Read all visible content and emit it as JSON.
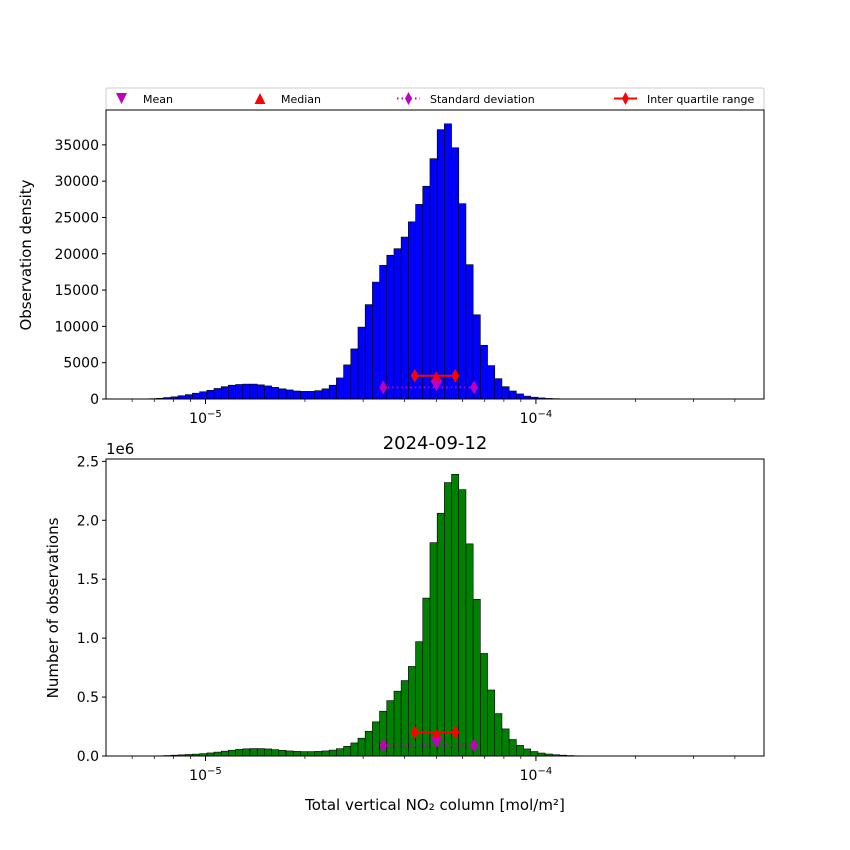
{
  "legend": {
    "placement": "top, above upper panel, single row",
    "entries": [
      {
        "label": "Mean",
        "color": "#bf00bf",
        "marker": "triangle-down"
      },
      {
        "label": "Median",
        "color": "#ff0000",
        "marker": "triangle-up"
      },
      {
        "label": "Standard deviation",
        "color": "#bf00bf",
        "marker": "thin-diamond",
        "linestyle": "dotted"
      },
      {
        "label": "Inter quartile range",
        "color": "#ff0000",
        "marker": "thin-diamond",
        "linestyle": "solid"
      }
    ]
  },
  "chart_data": [
    {
      "type": "bar",
      "xscale": "log",
      "xlim": [
        5e-06,
        0.00049
      ],
      "ylim": [
        0,
        39800
      ],
      "xticks": [
        {
          "value": 1e-05,
          "label": "10−5"
        },
        {
          "value": 0.0001,
          "label": "10−4"
        }
      ],
      "yticks": [
        0,
        5000,
        10000,
        15000,
        20000,
        25000,
        30000,
        35000
      ],
      "ylabel": "Observation density",
      "xlabel": "",
      "title": "",
      "bar_color": "#0000ff",
      "bin_edges": [
        5e-06,
        5.26e-06,
        5.53e-06,
        5.81e-06,
        6.11e-06,
        6.43e-06,
        6.76e-06,
        7.11e-06,
        7.47e-06,
        7.86e-06,
        8.26e-06,
        8.69e-06,
        9.13e-06,
        9.6e-06,
        1.01e-05,
        1.061e-05,
        1.116e-05,
        1.173e-05,
        1.234e-05,
        1.297e-05,
        1.364e-05,
        1.434e-05,
        1.508e-05,
        1.585e-05,
        1.667e-05,
        1.753e-05,
        1.843e-05,
        1.938e-05,
        2.037e-05,
        2.142e-05,
        2.252e-05,
        2.368e-05,
        2.49e-05,
        2.618e-05,
        2.753e-05,
        2.894e-05,
        3.043e-05,
        3.2e-05,
        3.364e-05,
        3.537e-05,
        3.719e-05,
        3.91e-05,
        4.111e-05,
        4.323e-05,
        4.545e-05,
        4.779e-05,
        5.025e-05,
        5.283e-05,
        5.555e-05,
        5.84e-05,
        6.141e-05,
        6.457e-05,
        6.789e-05,
        7.138e-05,
        7.505e-05,
        7.891e-05,
        8.297e-05,
        8.724e-05,
        9.173e-05,
        9.645e-05,
        0.00010141,
        0.00010663,
        0.00011211,
        0.00011788,
        0.00012394,
        0.00013032,
        0.00013702,
        0.00014407,
        0.00015148,
        0.00015927,
        0.00016746,
        0.00017608,
        0.00018514,
        0.00019466,
        0.00020467,
        0.0002152,
        0.00022627,
        0.00023791,
        0.00025015,
        0.00026302,
        0.00027655,
        0.00029077,
        0.00030573,
        0.00032146,
        0.00033799,
        0.00035538,
        0.00037366,
        0.00039288,
        0.00041309,
        0.00043434,
        0.00045669,
        0.00048018
      ],
      "values": [
        0,
        0,
        0,
        0,
        0,
        20,
        50,
        100,
        200,
        300,
        450,
        600,
        800,
        1000,
        1200,
        1450,
        1700,
        1900,
        2000,
        2050,
        2050,
        1950,
        1800,
        1600,
        1400,
        1250,
        1100,
        1050,
        1050,
        1150,
        1400,
        1900,
        2900,
        4700,
        6900,
        9900,
        13000,
        16100,
        18400,
        19800,
        20700,
        22300,
        24400,
        26800,
        29300,
        33100,
        37100,
        37900,
        34600,
        26900,
        18500,
        11600,
        7400,
        4600,
        2800,
        1700,
        1100,
        700,
        400,
        250,
        150,
        80,
        50,
        25,
        12,
        0,
        0,
        0,
        0,
        0,
        0,
        0,
        0,
        0,
        0,
        0,
        0,
        0,
        0,
        0,
        0,
        0,
        0,
        0,
        0,
        0,
        0,
        0,
        0,
        0,
        0
      ],
      "statistics": {
        "mean": {
          "x": 5e-05,
          "y": 1900
        },
        "median": {
          "x": 5e-05,
          "y": 3000
        },
        "std_dev": {
          "low": 3.45e-05,
          "high": 6.5e-05,
          "y": 1600
        },
        "iqr": {
          "low": 4.3e-05,
          "high": 5.7e-05,
          "y": 3200
        }
      }
    },
    {
      "type": "bar",
      "xscale": "log",
      "xlim": [
        5e-06,
        0.00049
      ],
      "ylim": [
        0,
        2.52
      ],
      "xticks": [
        {
          "value": 1e-05,
          "label": "10−5"
        },
        {
          "value": 0.0001,
          "label": "10−4"
        }
      ],
      "yticks": [
        0.0,
        0.5,
        1.0,
        1.5,
        2.0,
        2.5
      ],
      "ytick_labels": [
        "0.0",
        "0.5",
        "1.0",
        "1.5",
        "2.0",
        "2.5"
      ],
      "y_offset_label": "1e6",
      "ylabel": "Number of observations",
      "xlabel": "Total vertical NO₂ column [mol/m²]",
      "title": "2024-09-12",
      "bar_color": "#008000",
      "bin_edges": [
        5e-06,
        5.26e-06,
        5.53e-06,
        5.81e-06,
        6.11e-06,
        6.43e-06,
        6.76e-06,
        7.11e-06,
        7.47e-06,
        7.86e-06,
        8.26e-06,
        8.69e-06,
        9.13e-06,
        9.6e-06,
        1.01e-05,
        1.061e-05,
        1.116e-05,
        1.173e-05,
        1.234e-05,
        1.297e-05,
        1.364e-05,
        1.434e-05,
        1.508e-05,
        1.585e-05,
        1.667e-05,
        1.753e-05,
        1.843e-05,
        1.938e-05,
        2.037e-05,
        2.142e-05,
        2.252e-05,
        2.368e-05,
        2.49e-05,
        2.618e-05,
        2.753e-05,
        2.894e-05,
        3.043e-05,
        3.2e-05,
        3.364e-05,
        3.537e-05,
        3.719e-05,
        3.91e-05,
        4.111e-05,
        4.323e-05,
        4.545e-05,
        4.779e-05,
        5.025e-05,
        5.283e-05,
        5.555e-05,
        5.84e-05,
        6.141e-05,
        6.457e-05,
        6.789e-05,
        7.138e-05,
        7.505e-05,
        7.891e-05,
        8.297e-05,
        8.724e-05,
        9.173e-05,
        9.645e-05,
        0.00010141,
        0.00010663,
        0.00011211,
        0.00011788,
        0.00012394,
        0.00013032,
        0.00013702,
        0.00014407,
        0.00015148,
        0.00015927,
        0.00016746,
        0.00017608,
        0.00018514,
        0.00019466,
        0.00020467,
        0.0002152,
        0.00022627,
        0.00023791,
        0.00025015,
        0.00026302,
        0.00027655,
        0.00029077,
        0.00030573,
        0.00032146,
        0.00033799,
        0.00035538,
        0.00037366,
        0.00039288,
        0.00041309,
        0.00043434,
        0.00045669,
        0.00048018
      ],
      "values": [
        0,
        0,
        0,
        0,
        0,
        0,
        0,
        0.002,
        0.004,
        0.007,
        0.01,
        0.013,
        0.016,
        0.02,
        0.026,
        0.033,
        0.041,
        0.049,
        0.056,
        0.061,
        0.063,
        0.063,
        0.06,
        0.054,
        0.048,
        0.043,
        0.039,
        0.037,
        0.037,
        0.039,
        0.043,
        0.05,
        0.062,
        0.082,
        0.111,
        0.151,
        0.21,
        0.29,
        0.38,
        0.47,
        0.55,
        0.64,
        0.76,
        0.97,
        1.34,
        1.81,
        2.06,
        2.32,
        2.39,
        2.26,
        1.8,
        1.33,
        0.87,
        0.56,
        0.36,
        0.23,
        0.14,
        0.09,
        0.06,
        0.038,
        0.025,
        0.017,
        0.011,
        0.007,
        0.004,
        0.002,
        0.001,
        0,
        0,
        0,
        0,
        0,
        0,
        0,
        0,
        0,
        0,
        0,
        0,
        0,
        0,
        0,
        0,
        0,
        0,
        0,
        0,
        0,
        0,
        0,
        0
      ],
      "statistics": {
        "mean": {
          "x": 5e-05,
          "y": 0.12
        },
        "median": {
          "x": 5e-05,
          "y": 0.18
        },
        "std_dev": {
          "low": 3.45e-05,
          "high": 6.5e-05,
          "y": 0.09
        },
        "iqr": {
          "low": 4.3e-05,
          "high": 5.7e-05,
          "y": 0.2
        }
      }
    }
  ]
}
